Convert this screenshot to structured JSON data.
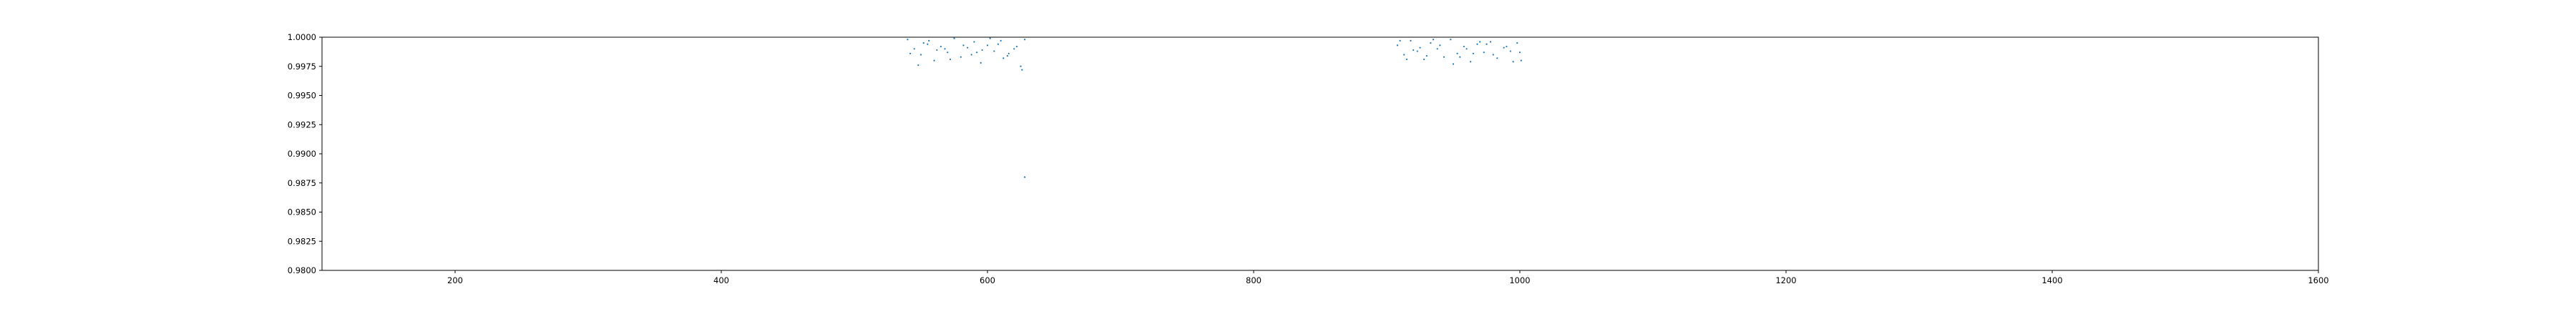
{
  "chart_data": {
    "type": "scatter",
    "title": "",
    "xlabel": "",
    "ylabel": "",
    "xlim": [
      100,
      1600
    ],
    "ylim": [
      0.98,
      1.0
    ],
    "x_ticks": [
      200,
      400,
      600,
      800,
      1000,
      1200,
      1400,
      1600
    ],
    "x_tick_labels": [
      "200",
      "400",
      "600",
      "800",
      "1000",
      "1200",
      "1400",
      "1600"
    ],
    "y_ticks": [
      0.98,
      0.9825,
      0.985,
      0.9875,
      0.99,
      0.9925,
      0.995,
      0.9975,
      1.0
    ],
    "y_tick_labels": [
      "0.9800",
      "0.9825",
      "0.9850",
      "0.9875",
      "0.9900",
      "0.9925",
      "0.9950",
      "0.9975",
      "1.0000"
    ],
    "grid": false,
    "legend": "none",
    "marker_color": "#1f77b4",
    "series": [
      {
        "x": [
          540,
          545,
          550,
          555,
          560,
          565,
          570,
          575,
          580,
          585,
          590,
          595,
          600,
          605,
          610,
          615,
          620,
          625,
          628,
          542,
          552,
          562,
          572,
          582,
          592,
          602,
          612,
          622,
          548,
          568,
          588,
          608,
          626,
          556,
          596,
          616
        ],
        "y": [
          0.9998,
          0.999,
          0.9985,
          0.9994,
          0.998,
          0.9992,
          0.9987,
          0.9999,
          0.9983,
          0.9991,
          0.9996,
          0.9978,
          0.9993,
          0.9988,
          0.9997,
          0.9984,
          0.999,
          0.9975,
          0.9998,
          0.9986,
          0.9995,
          0.9989,
          0.9981,
          0.9993,
          0.9987,
          0.9999,
          0.9982,
          0.9992,
          0.9976,
          0.999,
          0.9985,
          0.9994,
          0.9972,
          0.9997,
          0.9989,
          0.9986
        ]
      },
      {
        "x": [
          628
        ],
        "y": [
          0.988
        ]
      },
      {
        "x": [
          908,
          913,
          918,
          923,
          928,
          933,
          938,
          943,
          948,
          953,
          958,
          963,
          968,
          973,
          978,
          983,
          988,
          993,
          998,
          1001,
          910,
          920,
          930,
          940,
          950,
          960,
          970,
          980,
          990,
          1000,
          915,
          935,
          955,
          975,
          995,
          925,
          965
        ],
        "y": [
          0.9993,
          0.9985,
          0.9997,
          0.9988,
          0.9981,
          0.9995,
          0.999,
          0.9983,
          0.9998,
          0.9986,
          0.9992,
          0.9979,
          0.9994,
          0.9987,
          0.9996,
          0.9982,
          0.9991,
          0.9988,
          0.9995,
          0.998,
          0.9997,
          0.9989,
          0.9984,
          0.9993,
          0.9977,
          0.999,
          0.9996,
          0.9985,
          0.9992,
          0.9987,
          0.9981,
          0.9998,
          0.9983,
          0.9994,
          0.9979,
          0.9991,
          0.9986
        ]
      }
    ]
  }
}
